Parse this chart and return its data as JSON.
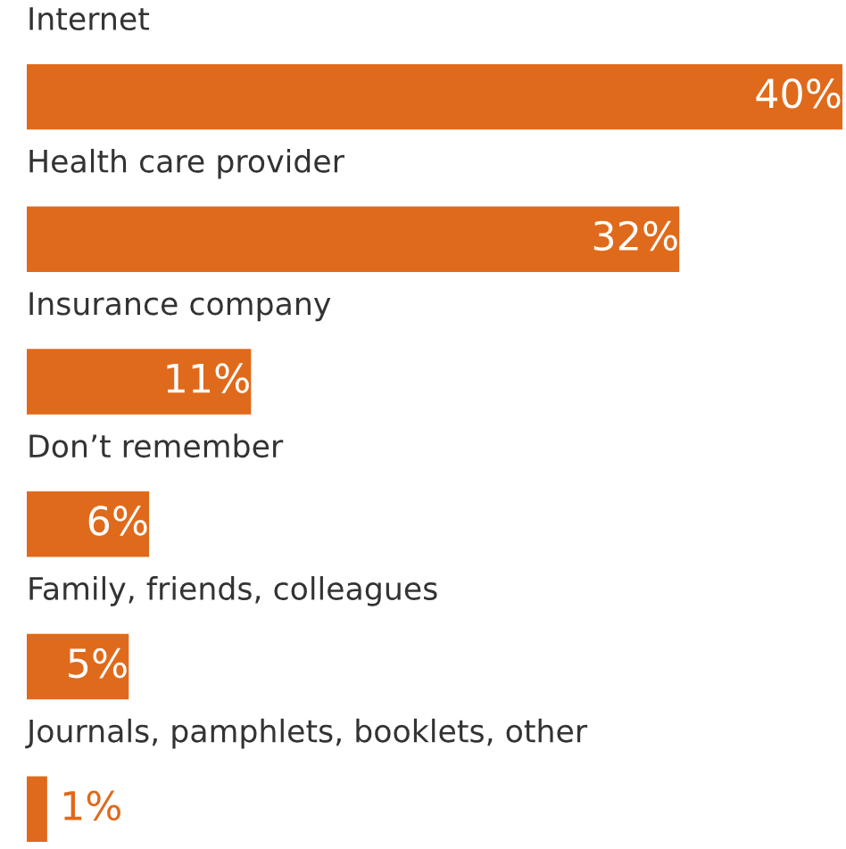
{
  "chart_data": {
    "type": "bar",
    "orientation": "horizontal",
    "categories": [
      "Internet",
      "Health care provider",
      "Insurance company",
      "Don’t remember",
      "Family, friends, colleagues",
      "Journals, pamphlets, booklets, other"
    ],
    "values": [
      40,
      32,
      11,
      6,
      5,
      1
    ],
    "value_labels": [
      "40%",
      "32%",
      "11%",
      "6%",
      "5%",
      "1%"
    ],
    "color": "#e06a1b",
    "tick_labels": false
  }
}
